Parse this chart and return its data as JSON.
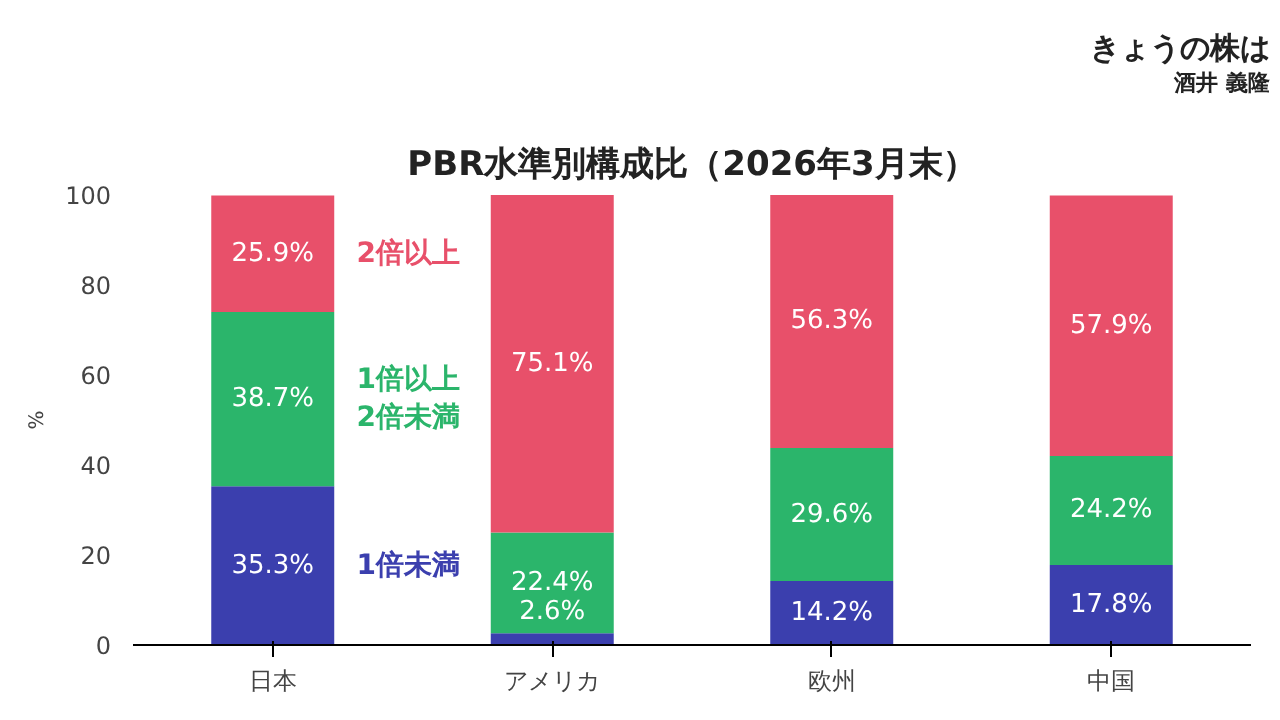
{
  "chart_data": {
    "type": "bar",
    "stacked": true,
    "title": "PBR水準別構成比（2026年3月末）",
    "annotations": [
      "きょうの株は",
      "酒井 義隆"
    ],
    "categories": [
      "日本",
      "アメリカ",
      "欧州",
      "中国"
    ],
    "ylabel": "%",
    "ylim": [
      0,
      100
    ],
    "yticks": [
      0,
      20,
      40,
      60,
      80,
      100
    ],
    "grid": false,
    "legend": false,
    "series": [
      {
        "name": "1倍未満",
        "color": "#3b3fae",
        "values": [
          35.3,
          2.6,
          14.2,
          17.8
        ],
        "value_labels": [
          "35.3%",
          "2.6%",
          "14.2%",
          "17.8%"
        ]
      },
      {
        "name": "1倍以上\n2倍未満",
        "color": "#2bb56b",
        "values": [
          38.7,
          22.4,
          29.6,
          24.2
        ],
        "value_labels": [
          "38.7%",
          "22.4%",
          "29.6%",
          "24.2%"
        ]
      },
      {
        "name": "2倍以上",
        "color": "#e8506a",
        "values": [
          25.9,
          75.1,
          56.3,
          57.9
        ],
        "value_labels": [
          "25.9%",
          "75.1%",
          "56.3%",
          "57.9%"
        ]
      }
    ]
  }
}
